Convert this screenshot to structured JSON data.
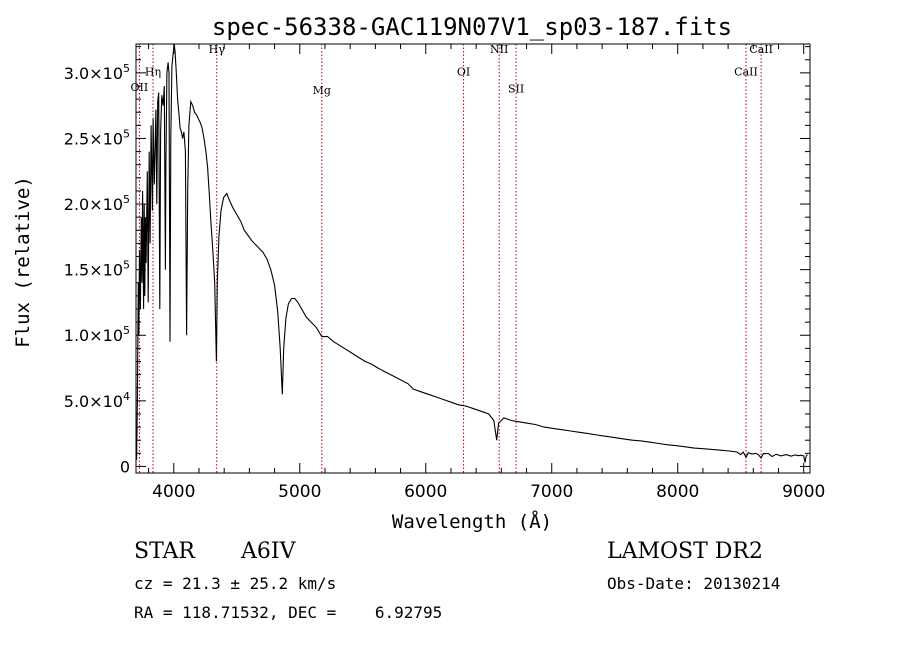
{
  "chart_data": {
    "type": "line",
    "title": "spec-56338-GAC119N07V1_sp03-187.fits",
    "xlabel": "Wavelength (Å)",
    "ylabel": "Flux (relative)",
    "xlim": [
      3700,
      9050
    ],
    "ylim": [
      -5000,
      322000
    ],
    "x_ticks": [
      {
        "value": 4000,
        "label": "4000"
      },
      {
        "value": 5000,
        "label": "5000"
      },
      {
        "value": 6000,
        "label": "6000"
      },
      {
        "value": 7000,
        "label": "7000"
      },
      {
        "value": 8000,
        "label": "8000"
      },
      {
        "value": 9000,
        "label": "9000"
      }
    ],
    "y_ticks": [
      {
        "value": 0,
        "mant": "0",
        "exp": ""
      },
      {
        "value": 50000,
        "mant": "5.0×10",
        "exp": "4"
      },
      {
        "value": 100000,
        "mant": "1.0×10",
        "exp": "5"
      },
      {
        "value": 150000,
        "mant": "1.5×10",
        "exp": "5"
      },
      {
        "value": 200000,
        "mant": "2.0×10",
        "exp": "5"
      },
      {
        "value": 250000,
        "mant": "2.5×10",
        "exp": "5"
      },
      {
        "value": 300000,
        "mant": "3.0×10",
        "exp": "5"
      }
    ],
    "spectral_lines": [
      {
        "wavelength": 3727,
        "label": "OII",
        "label_flux": 286000
      },
      {
        "wavelength": 3835,
        "label": "Hη",
        "label_flux": 298000
      },
      {
        "wavelength": 4341,
        "label": "Hγ",
        "label_flux": 315000
      },
      {
        "wavelength": 5175,
        "label": "Mg",
        "label_flux": 284000
      },
      {
        "wavelength": 6300,
        "label": "OI",
        "label_flux": 298000
      },
      {
        "wavelength": 6583,
        "label": "NII",
        "label_flux": 315000
      },
      {
        "wavelength": 6717,
        "label": "SII",
        "label_flux": 285000
      },
      {
        "wavelength": 8542,
        "label": "CaII",
        "label_flux": 298000
      },
      {
        "wavelength": 8662,
        "label": "CaII",
        "label_flux": 315000
      }
    ],
    "series": [
      {
        "line_color": "#000000",
        "points": [
          [
            3700,
            20000
          ],
          [
            3705,
            5000
          ],
          [
            3710,
            45000
          ],
          [
            3718,
            140000
          ],
          [
            3722,
            100000
          ],
          [
            3728,
            165000
          ],
          [
            3735,
            120000
          ],
          [
            3742,
            190000
          ],
          [
            3748,
            140000
          ],
          [
            3752,
            210000
          ],
          [
            3760,
            120000
          ],
          [
            3765,
            200000
          ],
          [
            3770,
            130000
          ],
          [
            3775,
            190000
          ],
          [
            3780,
            155000
          ],
          [
            3790,
            225000
          ],
          [
            3797,
            125000
          ],
          [
            3805,
            240000
          ],
          [
            3812,
            170000
          ],
          [
            3820,
            260000
          ],
          [
            3830,
            195000
          ],
          [
            3836,
            265000
          ],
          [
            3845,
            215000
          ],
          [
            3858,
            272000
          ],
          [
            3865,
            200000
          ],
          [
            3872,
            278000
          ],
          [
            3880,
            285000
          ],
          [
            3889,
            120000
          ],
          [
            3895,
            255000
          ],
          [
            3905,
            283000
          ],
          [
            3915,
            275000
          ],
          [
            3925,
            290000
          ],
          [
            3933,
            150000
          ],
          [
            3937,
            230000
          ],
          [
            3945,
            300000
          ],
          [
            3955,
            308000
          ],
          [
            3962,
            300000
          ],
          [
            3970,
            95000
          ],
          [
            3976,
            250000
          ],
          [
            3985,
            305000
          ],
          [
            3995,
            315000
          ],
          [
            4003,
            322000
          ],
          [
            4010,
            316000
          ],
          [
            4020,
            300000
          ],
          [
            4030,
            280000
          ],
          [
            4040,
            270000
          ],
          [
            4050,
            258000
          ],
          [
            4060,
            255000
          ],
          [
            4070,
            250000
          ],
          [
            4080,
            255000
          ],
          [
            4092,
            240000
          ],
          [
            4102,
            100000
          ],
          [
            4110,
            210000
          ],
          [
            4120,
            260000
          ],
          [
            4135,
            278000
          ],
          [
            4150,
            275000
          ],
          [
            4165,
            270000
          ],
          [
            4180,
            268000
          ],
          [
            4195,
            265000
          ],
          [
            4210,
            262000
          ],
          [
            4225,
            258000
          ],
          [
            4240,
            250000
          ],
          [
            4255,
            240000
          ],
          [
            4268,
            228000
          ],
          [
            4280,
            210000
          ],
          [
            4295,
            185000
          ],
          [
            4310,
            165000
          ],
          [
            4325,
            140000
          ],
          [
            4338,
            80000
          ],
          [
            4345,
            140000
          ],
          [
            4358,
            175000
          ],
          [
            4375,
            195000
          ],
          [
            4395,
            205000
          ],
          [
            4420,
            208000
          ],
          [
            4445,
            202000
          ],
          [
            4470,
            197000
          ],
          [
            4500,
            192000
          ],
          [
            4530,
            187000
          ],
          [
            4560,
            180000
          ],
          [
            4590,
            176000
          ],
          [
            4620,
            172000
          ],
          [
            4650,
            169000
          ],
          [
            4680,
            166000
          ],
          [
            4710,
            163000
          ],
          [
            4740,
            158000
          ],
          [
            4770,
            150000
          ],
          [
            4800,
            138000
          ],
          [
            4825,
            118000
          ],
          [
            4845,
            90000
          ],
          [
            4861,
            55000
          ],
          [
            4872,
            90000
          ],
          [
            4890,
            113000
          ],
          [
            4910,
            124000
          ],
          [
            4935,
            128000
          ],
          [
            4960,
            128000
          ],
          [
            4985,
            125000
          ],
          [
            5015,
            120000
          ],
          [
            5050,
            114000
          ],
          [
            5090,
            110000
          ],
          [
            5130,
            106000
          ],
          [
            5175,
            99000
          ],
          [
            5220,
            99000
          ],
          [
            5270,
            95000
          ],
          [
            5320,
            92000
          ],
          [
            5370,
            89000
          ],
          [
            5420,
            86000
          ],
          [
            5470,
            83000
          ],
          [
            5520,
            80000
          ],
          [
            5570,
            78000
          ],
          [
            5620,
            75000
          ],
          [
            5680,
            72000
          ],
          [
            5740,
            69000
          ],
          [
            5800,
            66000
          ],
          [
            5860,
            63000
          ],
          [
            5900,
            59000
          ],
          [
            5960,
            57000
          ],
          [
            6020,
            55000
          ],
          [
            6080,
            53000
          ],
          [
            6140,
            51000
          ],
          [
            6200,
            49000
          ],
          [
            6260,
            47000
          ],
          [
            6320,
            46000
          ],
          [
            6380,
            44000
          ],
          [
            6440,
            42000
          ],
          [
            6500,
            40000
          ],
          [
            6540,
            35000
          ],
          [
            6563,
            20000
          ],
          [
            6578,
            33000
          ],
          [
            6620,
            37000
          ],
          [
            6680,
            35000
          ],
          [
            6740,
            34000
          ],
          [
            6800,
            33000
          ],
          [
            6870,
            32000
          ],
          [
            6940,
            30000
          ],
          [
            7010,
            29000
          ],
          [
            7080,
            28000
          ],
          [
            7150,
            27000
          ],
          [
            7220,
            26000
          ],
          [
            7290,
            25000
          ],
          [
            7360,
            24000
          ],
          [
            7430,
            23000
          ],
          [
            7500,
            22000
          ],
          [
            7570,
            21000
          ],
          [
            7640,
            20000
          ],
          [
            7710,
            19500
          ],
          [
            7780,
            18500
          ],
          [
            7850,
            17500
          ],
          [
            7920,
            16500
          ],
          [
            7990,
            15800
          ],
          [
            8060,
            15000
          ],
          [
            8130,
            14000
          ],
          [
            8200,
            13500
          ],
          [
            8270,
            13000
          ],
          [
            8340,
            12400
          ],
          [
            8410,
            11800
          ],
          [
            8470,
            11000
          ],
          [
            8500,
            9000
          ],
          [
            8520,
            11000
          ],
          [
            8542,
            7000
          ],
          [
            8560,
            10500
          ],
          [
            8590,
            9500
          ],
          [
            8620,
            10000
          ],
          [
            8640,
            9000
          ],
          [
            8662,
            6500
          ],
          [
            8680,
            9800
          ],
          [
            8720,
            9800
          ],
          [
            8750,
            7500
          ],
          [
            8780,
            9300
          ],
          [
            8820,
            8000
          ],
          [
            8860,
            9000
          ],
          [
            8900,
            7800
          ],
          [
            8930,
            8800
          ],
          [
            8960,
            8200
          ],
          [
            8980,
            8600
          ],
          [
            9000,
            8000
          ],
          [
            9010,
            3000
          ],
          [
            9020,
            8000
          ],
          [
            9030,
            9000
          ]
        ]
      }
    ]
  },
  "info": {
    "object_class": "STAR",
    "subclass": "A6IV",
    "survey": "LAMOST DR2",
    "cz_line": "cz = 21.3 ± 25.2 km/s",
    "obs_date_line": "Obs-Date: 20130214",
    "coords_line": "RA = 118.71532, DEC =    6.92795"
  }
}
